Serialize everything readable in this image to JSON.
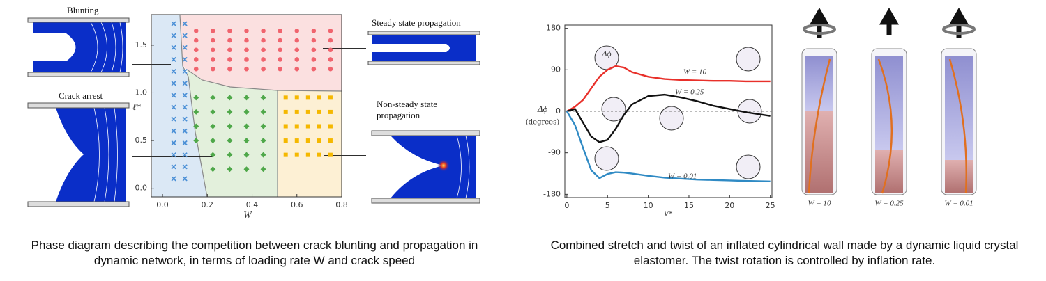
{
  "chart_data": [
    {
      "type": "scatter",
      "xlabel": "W",
      "ylabel": "ℓ*",
      "xlim": [
        -0.05,
        0.8
      ],
      "ylim": [
        -0.09,
        1.82
      ],
      "xticks": [
        {
          "value": 0,
          "label": "0.0"
        },
        0.2,
        0.4,
        0.6,
        0.8
      ],
      "yticks": [
        {
          "value": 0,
          "label": "0.0"
        },
        0.5,
        {
          "value": 1,
          "label": "1.0"
        },
        1.5
      ],
      "annotations": [
        "Blunting",
        "Crack arrest",
        "Steady state propagation",
        "Non-steady state propagation"
      ],
      "caption": "Phase diagram describing the competition between crack blunting and propagation in dynamic network, in terms of loading rate W and crack speed",
      "series": [
        {
          "color": "#4a8fd6",
          "marker": "x",
          "x": [
            0.05,
            0.05,
            0.05,
            0.05,
            0.05,
            0.05,
            0.05,
            0.05,
            0.05,
            0.05,
            0.05,
            0.05,
            0.05,
            0.05,
            0.1,
            0.1,
            0.1,
            0.1,
            0.1,
            0.1,
            0.1,
            0.1,
            0.1,
            0.1,
            0.1,
            0.1,
            0.1,
            0.1
          ],
          "values": [
            0.1,
            0.225,
            0.35,
            0.475,
            0.6,
            0.725,
            0.85,
            0.975,
            1.1,
            1.225,
            1.35,
            1.475,
            1.6,
            1.725,
            0.1,
            0.225,
            0.35,
            0.475,
            0.6,
            0.725,
            0.85,
            0.975,
            1.1,
            1.225,
            1.35,
            1.475,
            1.6,
            1.725
          ]
        },
        {
          "color": "#f0646e",
          "marker": "circle",
          "x": [
            0.15,
            0.15,
            0.15,
            0.15,
            0.15,
            0.225,
            0.225,
            0.225,
            0.225,
            0.225,
            0.3,
            0.3,
            0.3,
            0.3,
            0.3,
            0.375,
            0.375,
            0.375,
            0.375,
            0.375,
            0.45,
            0.45,
            0.45,
            0.45,
            0.45,
            0.525,
            0.525,
            0.525,
            0.525,
            0.525,
            0.6,
            0.6,
            0.6,
            0.6,
            0.6,
            0.675,
            0.675,
            0.675,
            0.675,
            0.675,
            0.75,
            0.75,
            0.75,
            0.75,
            0.75
          ],
          "values": [
            1.25,
            1.35,
            1.45,
            1.55,
            1.65,
            1.25,
            1.35,
            1.45,
            1.55,
            1.65,
            1.25,
            1.35,
            1.45,
            1.55,
            1.65,
            1.25,
            1.35,
            1.45,
            1.55,
            1.65,
            1.25,
            1.35,
            1.45,
            1.55,
            1.65,
            1.25,
            1.35,
            1.45,
            1.55,
            1.65,
            1.25,
            1.35,
            1.45,
            1.55,
            1.65,
            1.25,
            1.35,
            1.45,
            1.55,
            1.65,
            1.25,
            1.35,
            1.45,
            1.55,
            1.65
          ]
        },
        {
          "color": "#4fa84a",
          "marker": "diamond",
          "x": [
            0.15,
            0.15,
            0.15,
            0.15,
            0.225,
            0.225,
            0.225,
            0.225,
            0.225,
            0.225,
            0.3,
            0.3,
            0.3,
            0.3,
            0.3,
            0.3,
            0.375,
            0.375,
            0.375,
            0.375,
            0.375,
            0.375,
            0.45,
            0.45,
            0.45,
            0.45,
            0.45,
            0.45
          ],
          "values": [
            0.5,
            0.65,
            0.8,
            0.95,
            0.2,
            0.35,
            0.5,
            0.65,
            0.8,
            0.95,
            0.2,
            0.35,
            0.5,
            0.65,
            0.8,
            0.95,
            0.2,
            0.35,
            0.5,
            0.65,
            0.8,
            0.95,
            0.2,
            0.35,
            0.5,
            0.65,
            0.8,
            0.95
          ]
        },
        {
          "color": "#f5b800",
          "marker": "square",
          "x": [
            0.55,
            0.55,
            0.55,
            0.55,
            0.55,
            0.6,
            0.6,
            0.6,
            0.6,
            0.6,
            0.65,
            0.65,
            0.65,
            0.65,
            0.65,
            0.7,
            0.7,
            0.7,
            0.7,
            0.7,
            0.75,
            0.75,
            0.75,
            0.75,
            0.75
          ],
          "values": [
            0.35,
            0.5,
            0.65,
            0.8,
            0.95,
            0.35,
            0.5,
            0.65,
            0.8,
            0.95,
            0.35,
            0.5,
            0.65,
            0.8,
            0.95,
            0.35,
            0.5,
            0.65,
            0.8,
            0.95,
            0.35,
            0.5,
            0.65,
            0.8,
            0.95
          ]
        }
      ]
    },
    {
      "type": "line",
      "xlabel": "V*",
      "ylabel": "Δϕ",
      "ylabel_unit": "(degrees)",
      "xlim": [
        -0.25,
        25.2
      ],
      "ylim": [
        -187,
        187
      ],
      "xticks": [
        0,
        5,
        10,
        15,
        20,
        25
      ],
      "yticks": [
        -180,
        -90,
        0,
        90,
        180
      ],
      "annotations": [
        "Δϕ"
      ],
      "caption": "Combined stretch and twist of an inflated cylindrical wall made by a dynamic liquid crystal elastomer. The twist rotation is controlled by inflation rate.",
      "x": [
        0,
        1,
        2,
        3,
        4,
        5,
        6,
        7,
        8,
        10,
        12,
        14,
        16,
        18,
        20,
        22,
        25
      ],
      "series": [
        {
          "name": "W = 10",
          "color": "#e8302a",
          "values": [
            0,
            10,
            25,
            50,
            75,
            90,
            98,
            95,
            85,
            75,
            70,
            68,
            67,
            66,
            66,
            65,
            65
          ]
        },
        {
          "name": "W = 0.25",
          "color": "#111111",
          "values": [
            0,
            5,
            -25,
            -55,
            -67,
            -62,
            -38,
            -8,
            15,
            33,
            36,
            30,
            22,
            12,
            5,
            -2,
            -10
          ]
        },
        {
          "name": "W = 0.01",
          "color": "#2f8ac4",
          "values": [
            0,
            -30,
            -80,
            -128,
            -145,
            -136,
            -132,
            -133,
            -135,
            -140,
            -144,
            -146,
            -148,
            -149,
            -150,
            -151,
            -152
          ]
        }
      ]
    }
  ]
}
